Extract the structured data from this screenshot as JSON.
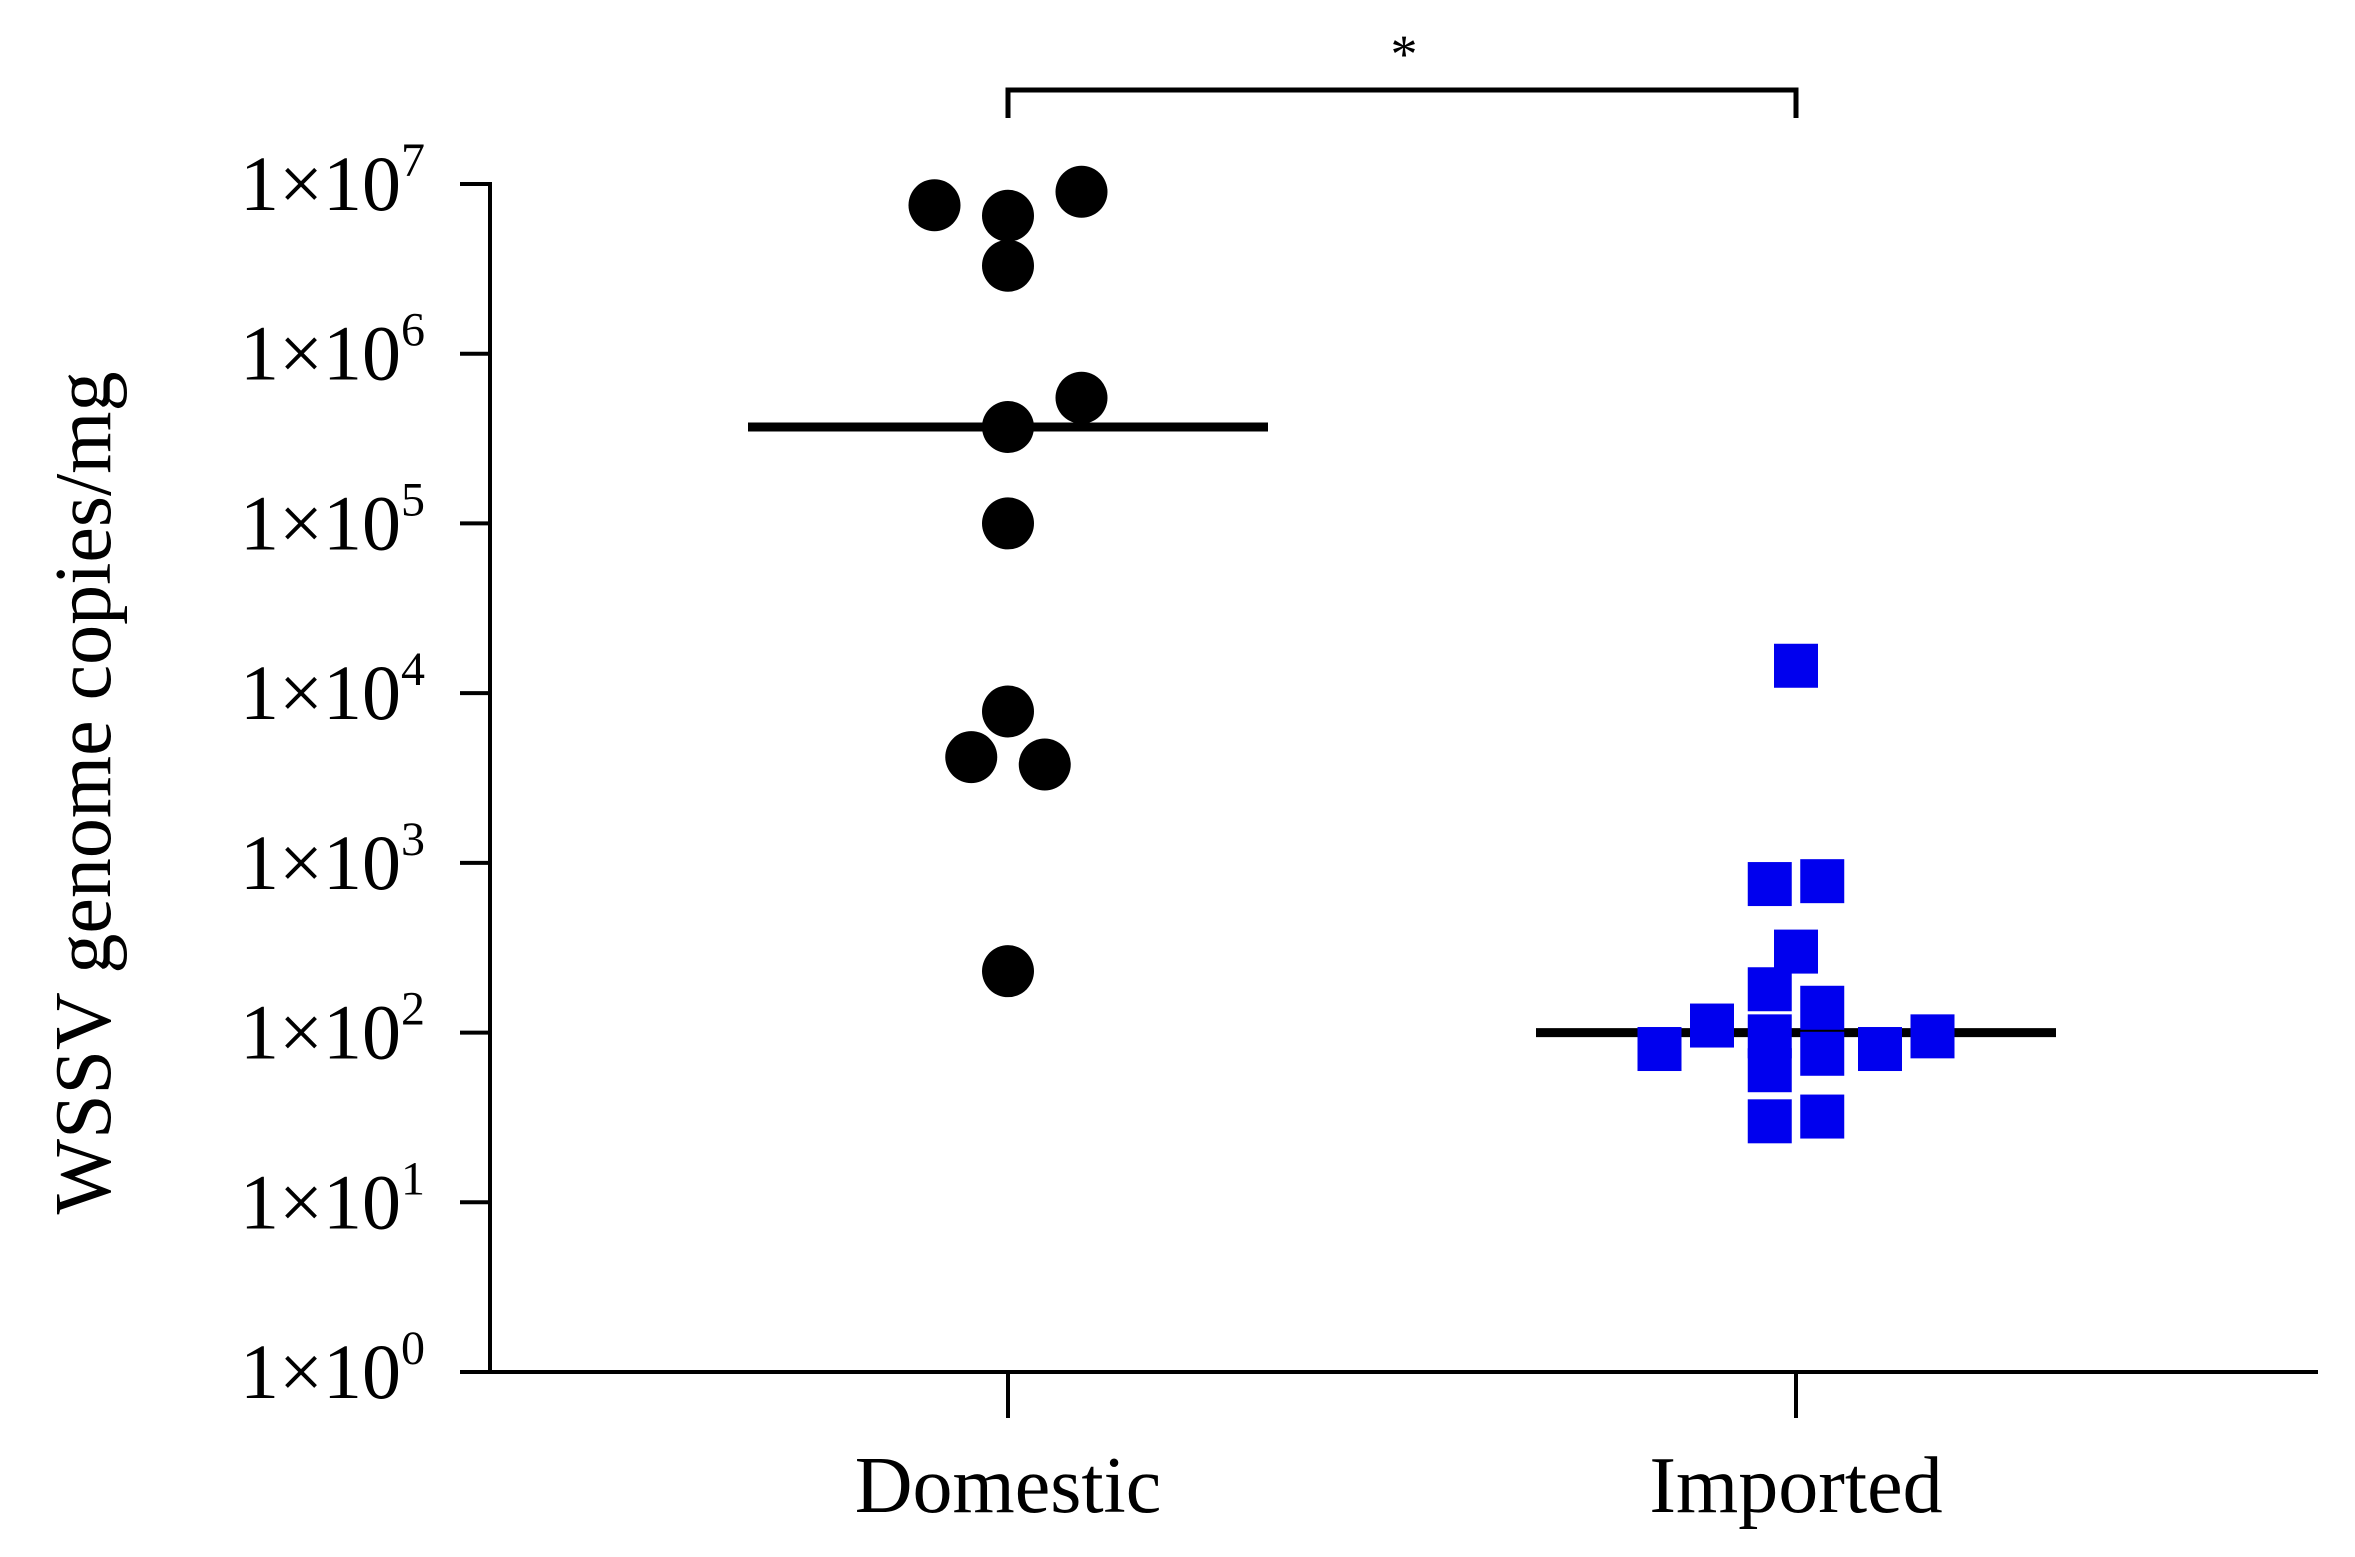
{
  "chart_data": {
    "type": "scatter",
    "xlabel": "",
    "ylabel": "WSSV genome copies/mg",
    "yscale": "log",
    "ylim": [
      1,
      10000000
    ],
    "yticks": [
      {
        "value": 1,
        "base": "1×10",
        "exp": "0"
      },
      {
        "value": 10,
        "base": "1×10",
        "exp": "1"
      },
      {
        "value": 100,
        "base": "1×10",
        "exp": "2"
      },
      {
        "value": 1000,
        "base": "1×10",
        "exp": "3"
      },
      {
        "value": 10000,
        "base": "1×10",
        "exp": "4"
      },
      {
        "value": 100000,
        "base": "1×10",
        "exp": "5"
      },
      {
        "value": 1000000,
        "base": "1×10",
        "exp": "6"
      },
      {
        "value": 10000000,
        "base": "1×10",
        "exp": "7"
      }
    ],
    "categories": [
      "Domestic",
      "Imported"
    ],
    "grid": false,
    "legend": "none",
    "series": [
      {
        "category": "Domestic",
        "marker": "circle",
        "color": "#000000",
        "median": 370000,
        "points": [
          {
            "jitter": -0.7,
            "value": 7500000
          },
          {
            "jitter": 0.0,
            "value": 6500000
          },
          {
            "jitter": 0.7,
            "value": 9000000
          },
          {
            "jitter": 0.0,
            "value": 3300000
          },
          {
            "jitter": 0.7,
            "value": 550000
          },
          {
            "jitter": 0.0,
            "value": 370000
          },
          {
            "jitter": 0.0,
            "value": 100000
          },
          {
            "jitter": 0.0,
            "value": 7800
          },
          {
            "jitter": -0.35,
            "value": 4200
          },
          {
            "jitter": 0.35,
            "value": 3800
          },
          {
            "jitter": 0.0,
            "value": 230
          }
        ]
      },
      {
        "category": "Imported",
        "marker": "square",
        "color": "#0000ee",
        "median": 100,
        "points": [
          {
            "jitter": 0.0,
            "value": 14500
          },
          {
            "jitter": -0.25,
            "value": 750
          },
          {
            "jitter": 0.25,
            "value": 780
          },
          {
            "jitter": 0.0,
            "value": 300
          },
          {
            "jitter": -0.25,
            "value": 180
          },
          {
            "jitter": 0.25,
            "value": 140
          },
          {
            "jitter": -1.3,
            "value": 80
          },
          {
            "jitter": -0.8,
            "value": 110
          },
          {
            "jitter": -0.25,
            "value": 95
          },
          {
            "jitter": 0.25,
            "value": 75
          },
          {
            "jitter": -0.25,
            "value": 60
          },
          {
            "jitter": 0.8,
            "value": 80
          },
          {
            "jitter": 1.3,
            "value": 95
          },
          {
            "jitter": -0.25,
            "value": 30
          },
          {
            "jitter": 0.25,
            "value": 32
          }
        ]
      }
    ],
    "significance": {
      "from": "Domestic",
      "to": "Imported",
      "label": "*"
    }
  }
}
